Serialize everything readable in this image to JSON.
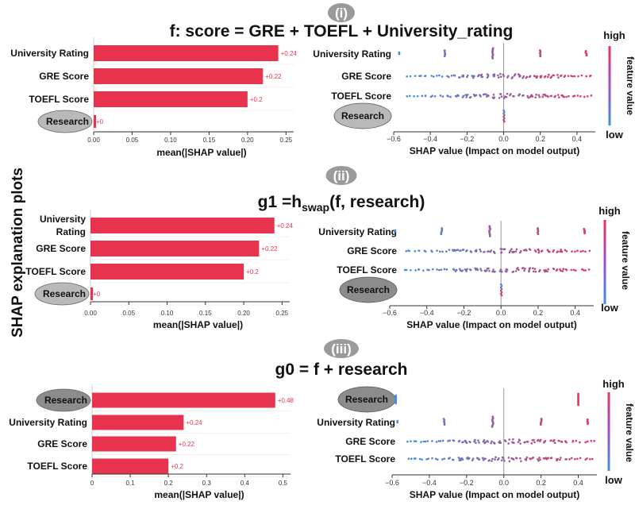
{
  "side_label": "SHAP explanation  plots",
  "colors": {
    "bar": "#e8334f",
    "label": "#e8334f",
    "high": "#e8335a",
    "low": "#3d8fe6",
    "badge_light": "#b9b9b9",
    "badge_dark": "#8c8c8c"
  },
  "panels": [
    {
      "badge": "(i)",
      "title_pre": "f: score = GRE + TOEFL + University_rating",
      "title_sub": "",
      "title_post": "",
      "bar_chart": {
        "type": "bar",
        "orientation": "horizontal",
        "categories": [
          "University Rating",
          "GRE Score",
          "TOEFL Score",
          "Research"
        ],
        "values": [
          0.24,
          0.22,
          0.2,
          0
        ],
        "value_labels": [
          "+0.24",
          "+0.22",
          "+0.2",
          "+0"
        ],
        "xlabel": "mean(|SHAP value|)",
        "xlim": [
          0,
          0.26
        ],
        "xticks": [
          "0.00",
          "0.05",
          "0.10",
          "0.15",
          "0.20",
          "0.25"
        ],
        "highlight": "Research",
        "highlight_style": "light"
      },
      "beeswarm": {
        "type": "scatter",
        "features": [
          "University Rating",
          "GRE Score",
          "TOEFL Score",
          "Research"
        ],
        "xlabel": "SHAP value (Impact on model output)",
        "xlim": [
          -0.6,
          0.5
        ],
        "xticks": [
          "−0.6",
          "−0.4",
          "−0.2",
          "0.0",
          "0.2",
          "0.4"
        ],
        "highlight": "Research",
        "highlight_style": "light",
        "colorbar": {
          "high": "high",
          "low": "low",
          "label": "feature value"
        }
      }
    },
    {
      "badge": "(ii)",
      "title_pre": "g1 =h",
      "title_sub": "swap",
      "title_post": "(f, research)",
      "bar_chart": {
        "type": "bar",
        "orientation": "horizontal",
        "categories": [
          "University Rating",
          "GRE Score",
          "TOEFL Score",
          "Research"
        ],
        "values": [
          0.24,
          0.22,
          0.2,
          0
        ],
        "value_labels": [
          "+0.24",
          "+0.22",
          "+0.2",
          "+0"
        ],
        "xlabel": "mean(|SHAP value|)",
        "xlim": [
          0,
          0.26
        ],
        "xticks": [
          "0.00",
          "0.05",
          "0.10",
          "0.15",
          "0.20",
          "0.25"
        ],
        "highlight": "Research",
        "highlight_style": "light"
      },
      "beeswarm": {
        "type": "scatter",
        "features": [
          "University Rating",
          "GRE Score",
          "TOEFL Score",
          "Research"
        ],
        "xlabel": "SHAP value (Impact on model output)",
        "xlim": [
          -0.6,
          0.5
        ],
        "xticks": [
          "−0.6",
          "−0.4",
          "−0.2",
          "0.0",
          "0.2",
          "0.4"
        ],
        "highlight": "Research",
        "highlight_style": "dark",
        "colorbar": {
          "high": "high",
          "low": "low",
          "label": "feature value"
        }
      }
    },
    {
      "badge": "(iii)",
      "title_pre": "g0 = f + research",
      "title_sub": "",
      "title_post": "",
      "bar_chart": {
        "type": "bar",
        "orientation": "horizontal",
        "categories": [
          "Research",
          "University Rating",
          "GRE Score",
          "TOEFL Score"
        ],
        "values": [
          0.48,
          0.24,
          0.22,
          0.2
        ],
        "value_labels": [
          "+0.48",
          "+0.24",
          "+0.22",
          "+0.2"
        ],
        "xlabel": "mean(|SHAP value|)",
        "xlim": [
          0,
          0.52
        ],
        "xticks": [
          "0",
          "0.1",
          "0.2",
          "0.3",
          "0.4",
          "0.5"
        ],
        "highlight": "Research",
        "highlight_style": "dark"
      },
      "beeswarm": {
        "type": "scatter",
        "features": [
          "Research",
          "University Rating",
          "GRE Score",
          "TOEFL Score"
        ],
        "xlabel": "SHAP value (Impact on model output)",
        "xlim": [
          -0.6,
          0.5
        ],
        "xticks": [
          "−0.6",
          "−0.4",
          "−0.2",
          "0.0",
          "0.2",
          "0.4"
        ],
        "highlight": "Research",
        "highlight_style": "dark",
        "colorbar": {
          "high": "high",
          "low": "low",
          "label": "feature value"
        }
      }
    }
  ]
}
